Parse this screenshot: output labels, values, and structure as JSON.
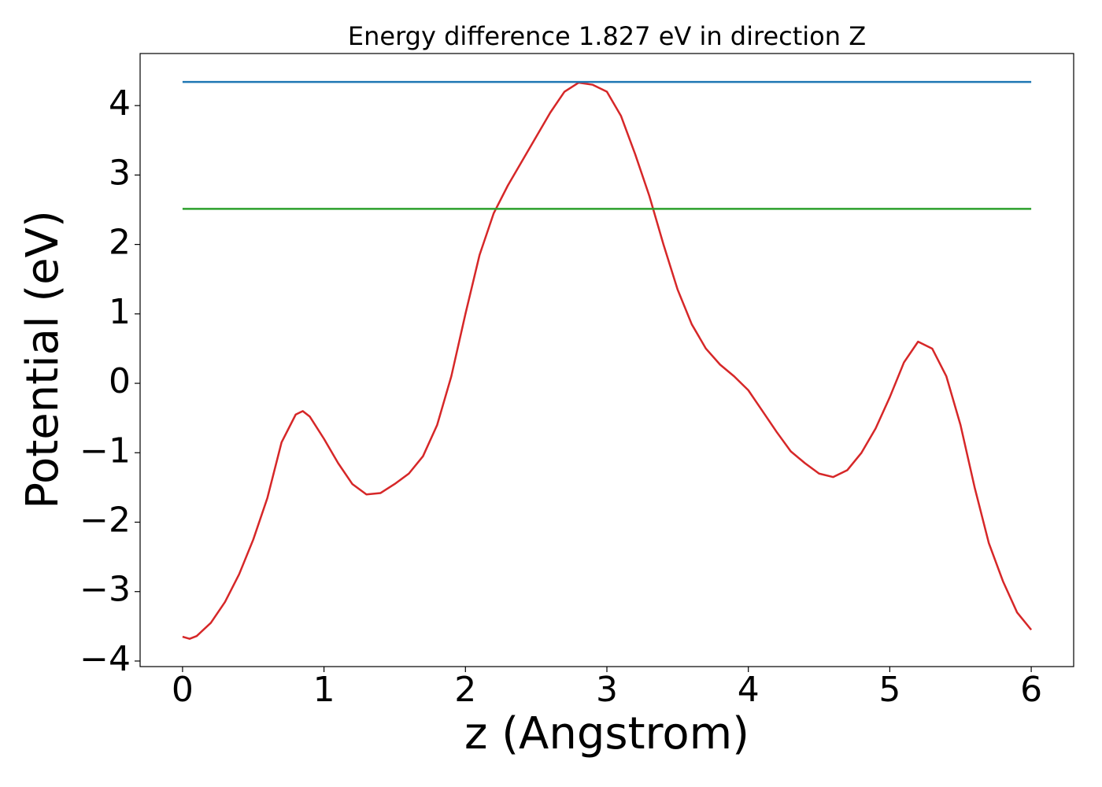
{
  "chart_data": {
    "type": "line",
    "title": "Energy difference 1.827 eV in direction Z",
    "xlabel": "z (Angstrom)",
    "ylabel": "Potential (eV)",
    "xlim": [
      -0.3,
      6.3
    ],
    "ylim": [
      -4.08,
      4.75
    ],
    "xticks": [
      0,
      1,
      2,
      3,
      4,
      5,
      6
    ],
    "yticks": [
      {
        "value": -4,
        "label": "−4"
      },
      {
        "value": -3,
        "label": "−3"
      },
      {
        "value": -2,
        "label": "−2"
      },
      {
        "value": -1,
        "label": "−1"
      },
      0,
      1,
      2,
      3,
      4
    ],
    "series": [
      {
        "color": "#d62728",
        "x": [
          0,
          0.05,
          0.1,
          0.2,
          0.3,
          0.4,
          0.5,
          0.6,
          0.7,
          0.8,
          0.85,
          0.9,
          1.0,
          1.1,
          1.2,
          1.3,
          1.4,
          1.5,
          1.6,
          1.7,
          1.8,
          1.9,
          2.0,
          2.1,
          2.2,
          2.3,
          2.4,
          2.5,
          2.6,
          2.7,
          2.8,
          2.9,
          3.0,
          3.1,
          3.2,
          3.3,
          3.4,
          3.5,
          3.6,
          3.7,
          3.8,
          3.9,
          4.0,
          4.1,
          4.2,
          4.3,
          4.4,
          4.5,
          4.6,
          4.7,
          4.8,
          4.9,
          5.0,
          5.1,
          5.2,
          5.3,
          5.4,
          5.5,
          5.6,
          5.7,
          5.8,
          5.9,
          6.0
        ],
        "values": [
          -3.65,
          -3.68,
          -3.64,
          -3.45,
          -3.15,
          -2.75,
          -2.25,
          -1.65,
          -0.85,
          -0.45,
          -0.4,
          -0.48,
          -0.8,
          -1.15,
          -1.45,
          -1.6,
          -1.58,
          -1.45,
          -1.3,
          -1.05,
          -0.6,
          0.1,
          1.0,
          1.85,
          2.45,
          2.85,
          3.2,
          3.55,
          3.9,
          4.2,
          4.33,
          4.3,
          4.2,
          3.85,
          3.3,
          2.7,
          2.0,
          1.35,
          0.85,
          0.5,
          0.27,
          0.1,
          -0.1,
          -0.4,
          -0.7,
          -0.98,
          -1.15,
          -1.3,
          -1.35,
          -1.25,
          -1.0,
          -0.65,
          -0.2,
          0.3,
          0.6,
          0.5,
          0.1,
          -0.6,
          -1.5,
          -2.3,
          -2.85,
          -3.3,
          -3.55
        ]
      },
      {
        "color": "#1f77b4",
        "x": [
          0,
          6
        ],
        "values": [
          4.34,
          4.34
        ]
      },
      {
        "color": "#2ca02c",
        "x": [
          0,
          6
        ],
        "values": [
          2.513,
          2.513
        ]
      }
    ]
  }
}
